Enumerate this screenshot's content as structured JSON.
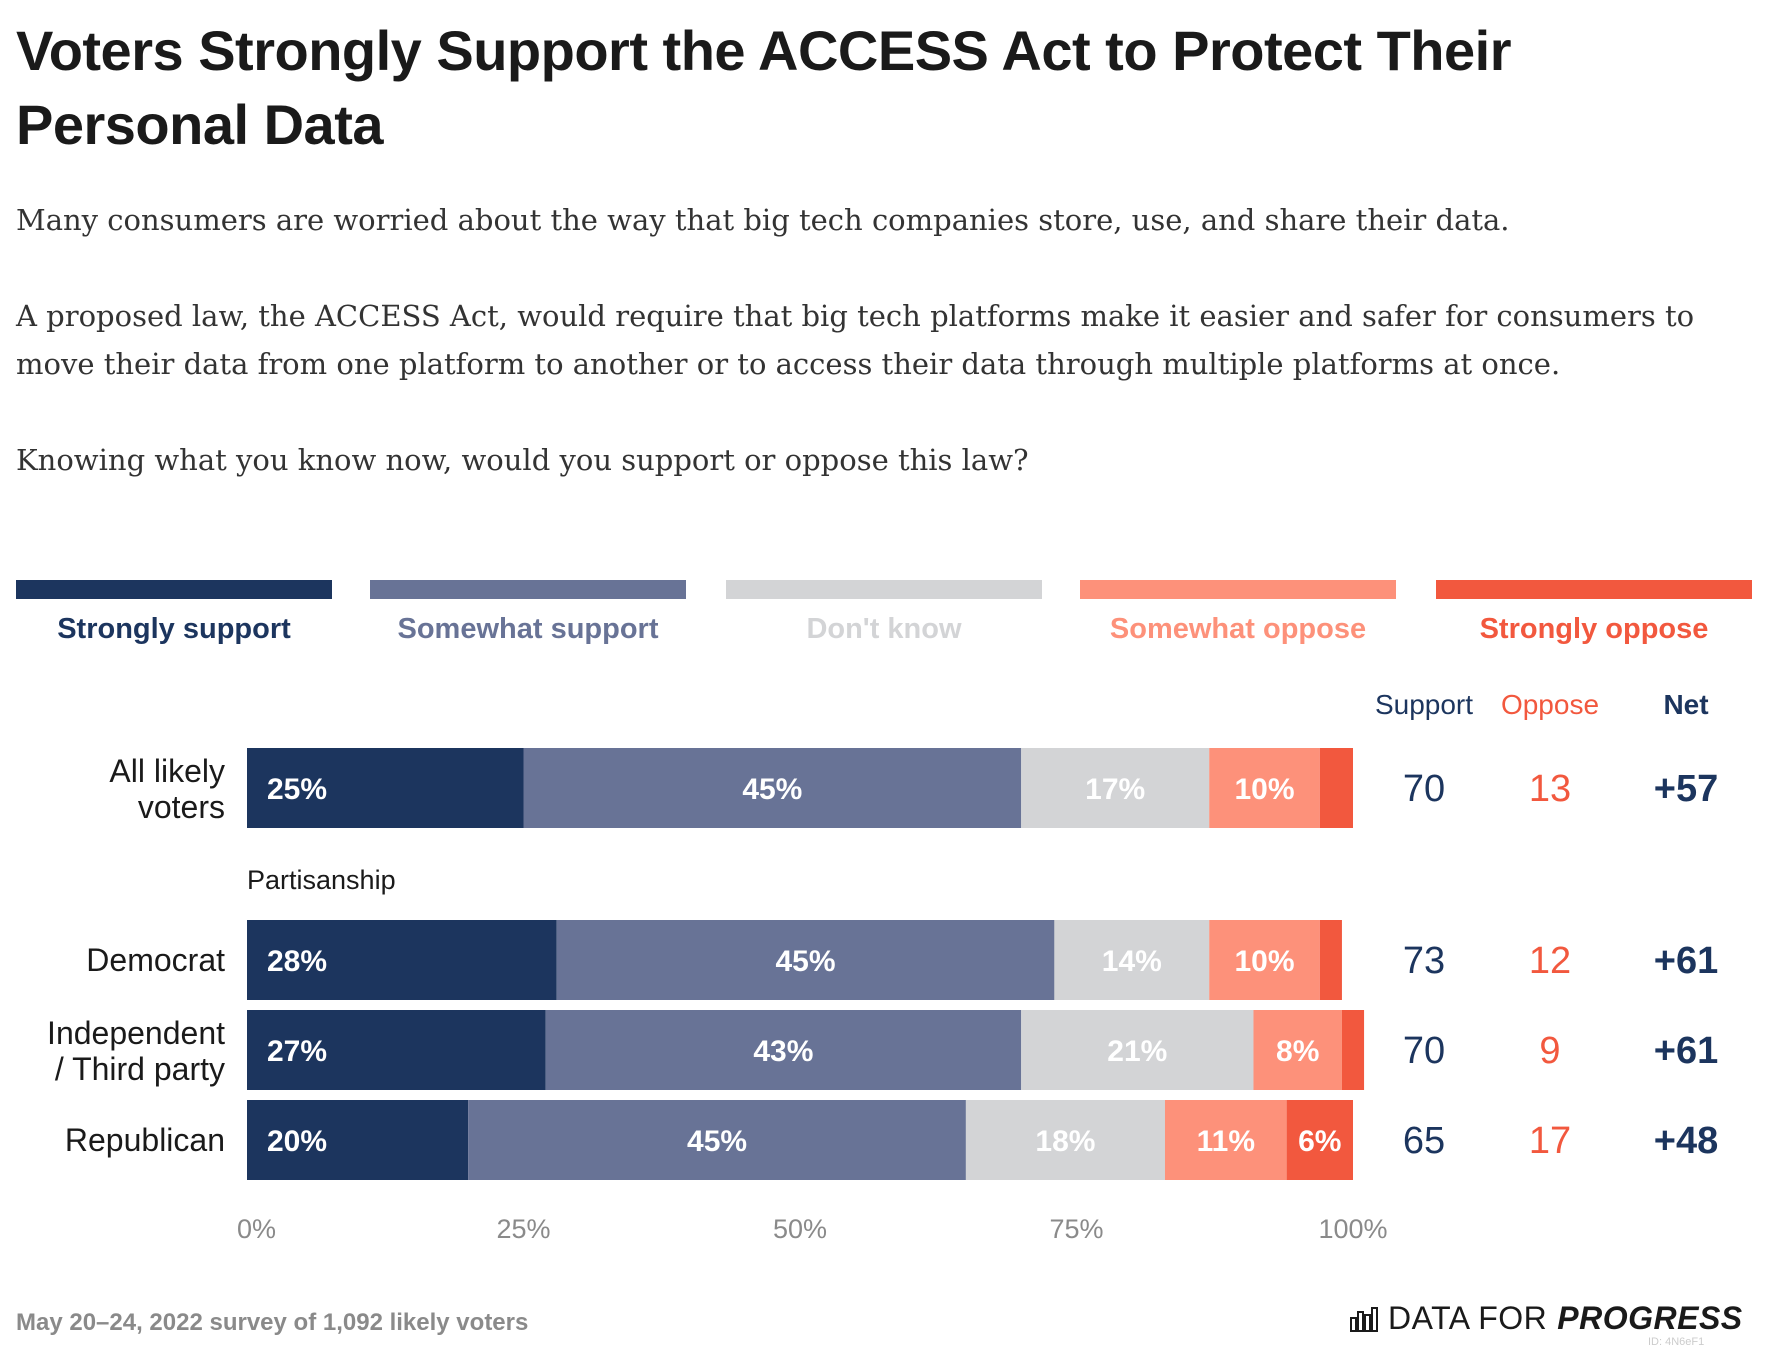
{
  "header": {
    "title": "Voters Strongly Support the ACCESS Act to Protect Their Personal Data",
    "subtitle_1": "Many consumers are worried about the way that big tech companies store, use, and share their data.",
    "subtitle_2": "A proposed law, the ACCESS Act, would require that big tech platforms make it easier and safer for consumers to move their data from one platform to another or to access their data through multiple platforms at once.",
    "subtitle_3": "Knowing what you know now, would you support or oppose this law?"
  },
  "colors": {
    "strongly_support": "#1c355e",
    "somewhat_support": "#687396",
    "dont_know": "#d3d4d6",
    "somewhat_oppose": "#fd917a",
    "strongly_oppose": "#f2583e",
    "axis_text": "#8a8a8a",
    "net": "#1c355e"
  },
  "chart_data": {
    "type": "bar",
    "orientation": "horizontal-stacked",
    "categories": [
      "All likely voters",
      "Democrat",
      "Independent / Third party",
      "Republican"
    ],
    "group_label": "Partisanship",
    "series": [
      {
        "name": "Strongly support",
        "values": [
          25,
          28,
          27,
          20
        ]
      },
      {
        "name": "Somewhat support",
        "values": [
          45,
          45,
          43,
          45
        ]
      },
      {
        "name": "Don't know",
        "values": [
          17,
          14,
          21,
          18
        ]
      },
      {
        "name": "Somewhat oppose",
        "values": [
          10,
          10,
          8,
          11
        ]
      },
      {
        "name": "Strongly oppose",
        "values": [
          3,
          2,
          2,
          6
        ]
      }
    ],
    "summary_headers": {
      "support": "Support",
      "oppose": "Oppose",
      "net": "Net"
    },
    "support": [
      70,
      73,
      70,
      65
    ],
    "oppose": [
      13,
      12,
      9,
      17
    ],
    "net": [
      "+57",
      "+61",
      "+61",
      "+48"
    ],
    "xlim": [
      0,
      100
    ],
    "x_ticks": [
      "0%",
      "25%",
      "50%",
      "75%",
      "100%"
    ],
    "legend_position": "top"
  },
  "footer": {
    "source": "May 20–24, 2022 survey of 1,092 likely voters",
    "brand_regular": "DATA FOR",
    "brand_bold": "PROGRESS",
    "id": "ID: 4N6eF1"
  }
}
